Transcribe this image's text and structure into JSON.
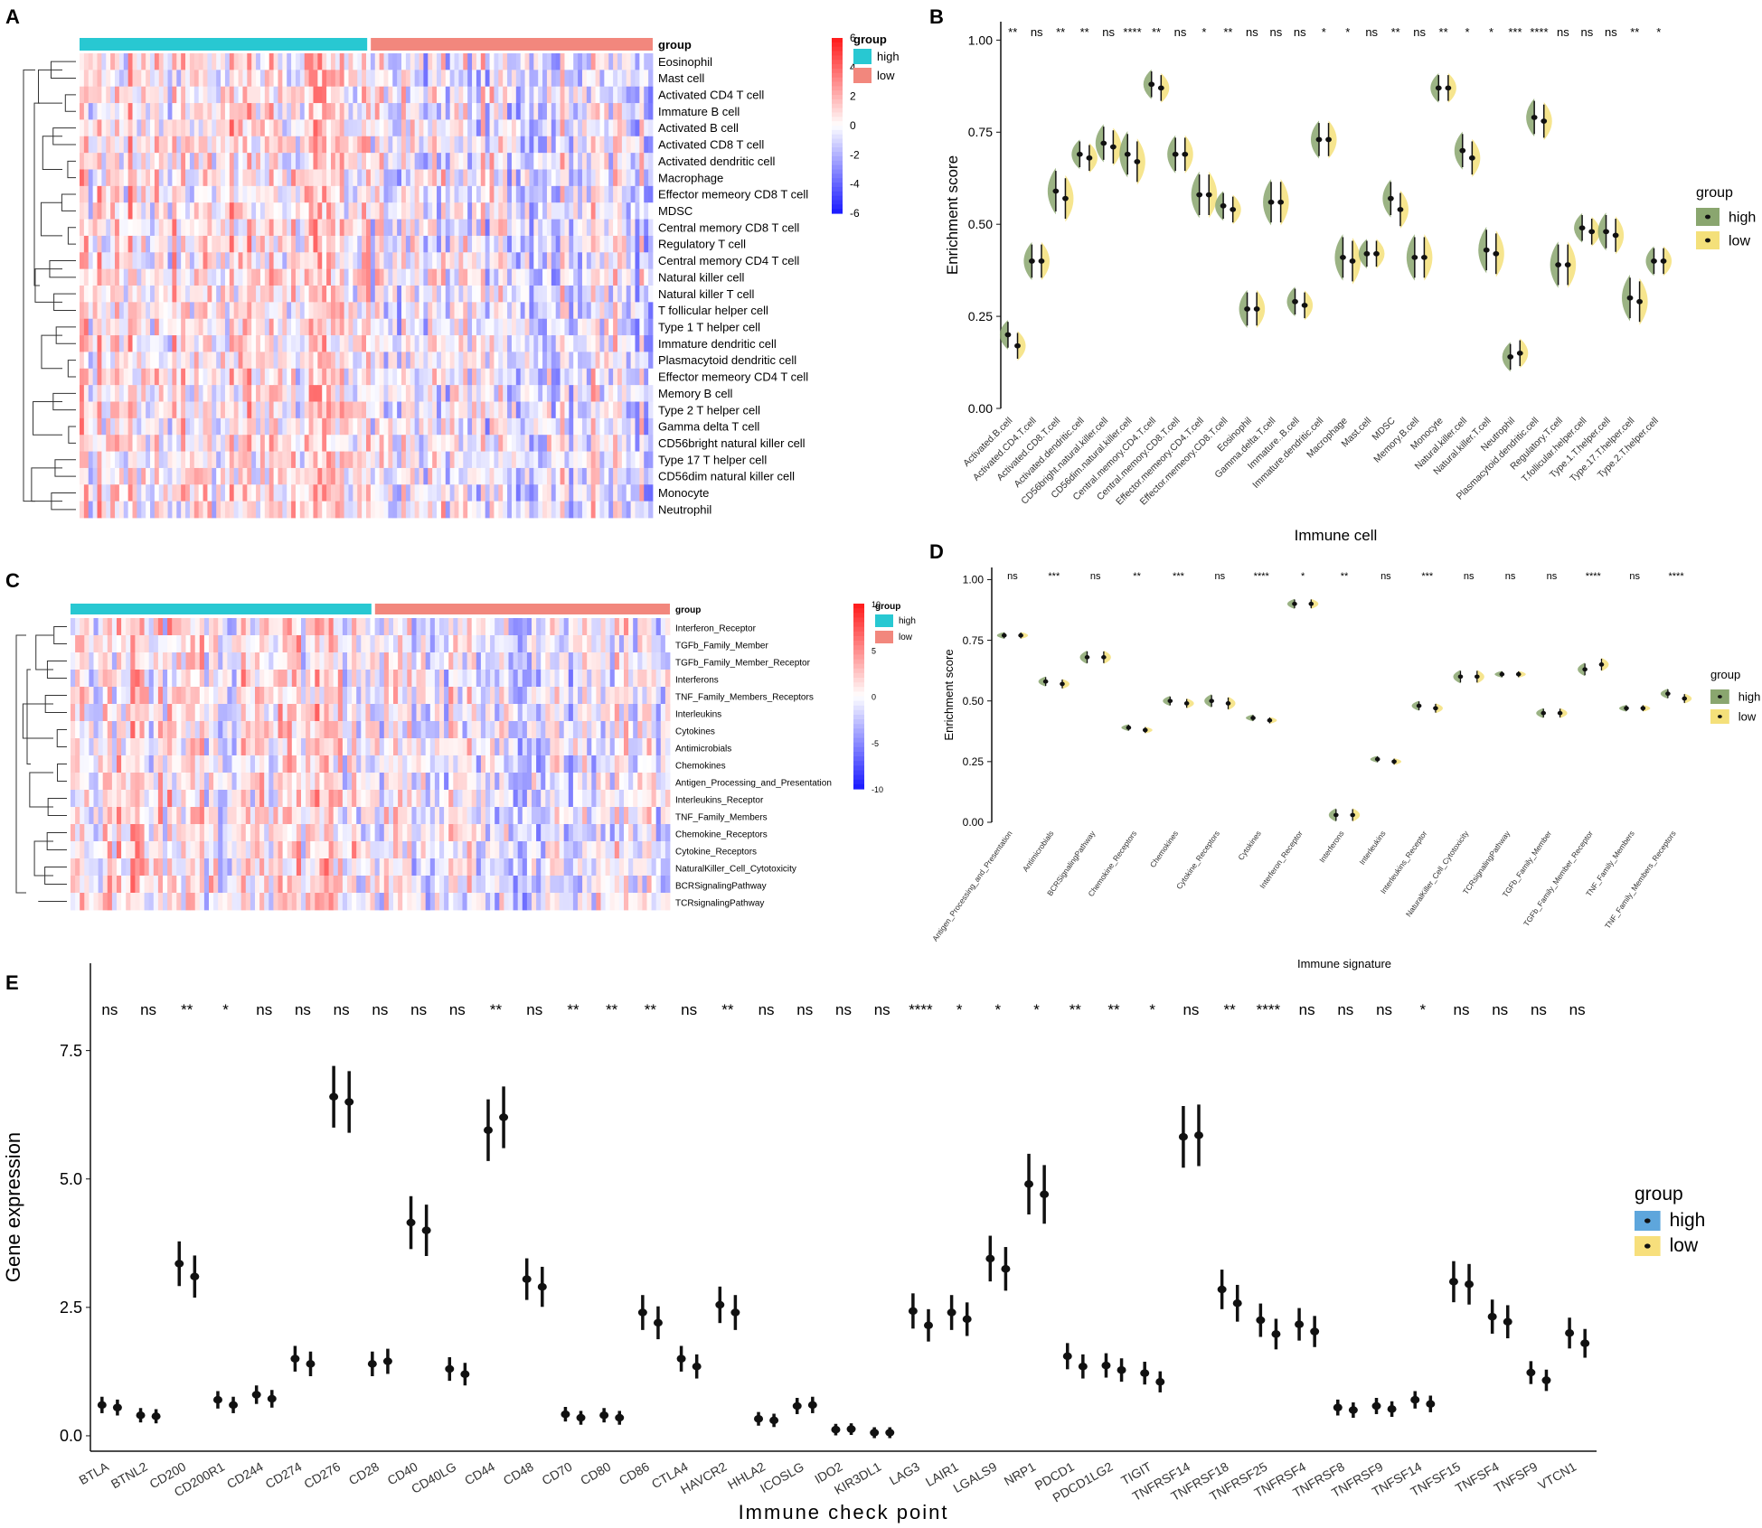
{
  "chart_data": [
    {
      "panel": "A",
      "type": "heatmap",
      "annotation_title": "group",
      "groups": [
        {
          "name": "high",
          "color": "#28c8d2"
        },
        {
          "name": "low",
          "color": "#f2877d"
        }
      ],
      "legend_title": "group",
      "colorbar_ticks": [
        "6",
        "4",
        "2",
        "0",
        "-2",
        "-4",
        "-6"
      ],
      "rows": [
        "Eosinophil",
        "Mast cell",
        "Activated CD4 T cell",
        "Immature  B cell",
        "Activated B cell",
        "Activated CD8 T cell",
        "Activated dendritic cell",
        "Macrophage",
        "Effector memeory CD8 T cell",
        "MDSC",
        "Central memory CD8 T cell",
        "Regulatory T cell",
        "Central memory CD4 T cell",
        "Natural killer cell",
        "Natural killer T cell",
        "T follicular helper cell",
        "Type 1 T helper cell",
        "Immature dendritic cell",
        "Plasmacytoid dendritic cell",
        "Effector memeory CD4 T cell",
        "Memory B cell",
        "Type 2 T helper cell",
        "Gamma delta T cell",
        "CD56bright natural killer cell",
        "Type 17 T helper cell",
        "CD56dim natural killer cell",
        "Monocyte",
        "Neutrophil"
      ]
    },
    {
      "panel": "B",
      "type": "violin",
      "xlabel": "Immune cell",
      "ylabel": "Enrichment score",
      "ylim": [
        0,
        1.05
      ],
      "yticks": [
        "0.00",
        "0.25",
        "0.50",
        "0.75",
        "1.00"
      ],
      "legend_title": "group",
      "legend": [
        "high",
        "low"
      ],
      "categories": [
        "Activated.B.cell",
        "Activated.CD4.T.cell",
        "Activated.CD8.T.cell",
        "Activated.dendritic.cell",
        "CD56bright.natural.killer.cell",
        "CD56dim.natural.killer.cell",
        "Central.memory.CD4.T.cell",
        "Central.memory.CD8.T.cell",
        "Effector.memeory.CD4.T.cell",
        "Effector.memeory.CD8.T.cell",
        "Eosinophil",
        "Gamma.delta.T.cell",
        "Immature..B.cell",
        "Immature.dendritic.cell",
        "Macrophage",
        "Mast.cell",
        "MDSC",
        "Memory.B.cell",
        "Monocyte",
        "Natural.killer.cell",
        "Natural.killer.T.cell",
        "Neutrophil",
        "Plasmacytoid.dendritic.cell",
        "Regulatory.T.cell",
        "T.follicular.helper.cell",
        "Type.1.T.helper.cell",
        "Type.17.T.helper.cell",
        "Type.2.T.helper.cell"
      ],
      "significance": [
        "**",
        "ns",
        "**",
        "**",
        "ns",
        "****",
        "**",
        "ns",
        "*",
        "**",
        "ns",
        "ns",
        "ns",
        "*",
        "*",
        "ns",
        "**",
        "ns",
        "**",
        "*",
        "*",
        "***",
        "****",
        "ns",
        "ns",
        "ns",
        "**",
        "*"
      ],
      "series": [
        {
          "name": "high",
          "values": [
            0.2,
            0.4,
            0.59,
            0.69,
            0.72,
            0.69,
            0.88,
            0.69,
            0.58,
            0.55,
            0.27,
            0.56,
            0.29,
            0.73,
            0.41,
            0.42,
            0.57,
            0.41,
            0.87,
            0.7,
            0.43,
            0.14,
            0.79,
            0.39,
            0.49,
            0.48,
            0.3,
            0.4
          ]
        },
        {
          "name": "low",
          "values": [
            0.17,
            0.4,
            0.57,
            0.68,
            0.71,
            0.67,
            0.87,
            0.69,
            0.58,
            0.54,
            0.27,
            0.56,
            0.28,
            0.73,
            0.4,
            0.42,
            0.54,
            0.41,
            0.87,
            0.68,
            0.42,
            0.15,
            0.78,
            0.39,
            0.48,
            0.47,
            0.29,
            0.4
          ]
        }
      ]
    },
    {
      "panel": "C",
      "type": "heatmap",
      "annotation_title": "group",
      "groups": [
        {
          "name": "high",
          "color": "#28c8d2"
        },
        {
          "name": "low",
          "color": "#f2877d"
        }
      ],
      "legend_title": "group",
      "colorbar_ticks": [
        "10",
        "5",
        "0",
        "-5",
        "-10"
      ],
      "rows": [
        "Interferon_Receptor",
        "TGFb_Family_Member",
        "TGFb_Family_Member_Receptor",
        "Interferons",
        "TNF_Family_Members_Receptors",
        "Interleukins",
        "Cytokines",
        "Antimicrobials",
        "Chemokines",
        "Antigen_Processing_and_Presentation",
        "Interleukins_Receptor",
        "TNF_Family_Members",
        "Chemokine_Receptors",
        "Cytokine_Receptors",
        "NaturalKiller_Cell_Cytotoxicity",
        "BCRSignalingPathway",
        "TCRsignalingPathway"
      ]
    },
    {
      "panel": "D",
      "type": "violin",
      "xlabel": "Immune signature",
      "ylabel": "Enrichment score",
      "ylim": [
        0,
        1.05
      ],
      "yticks": [
        "0.00",
        "0.25",
        "0.50",
        "0.75",
        "1.00"
      ],
      "legend_title": "group",
      "legend": [
        "high",
        "low"
      ],
      "categories": [
        "Antigen_Processing_and_Presentation",
        "Antimicrobials",
        "BCRSignalingPathway",
        "Chemokine_Receptors",
        "Chemokines",
        "Cytokine_Receptors",
        "Cytokines",
        "Interferon_Receptor",
        "Interferons",
        "Interleukins",
        "Interleukins_Receptor",
        "NaturalKiller_Cell_Cytotoxicity",
        "TCRsignalingPathway",
        "TGFb_Family_Member",
        "TGFb_Family_Member_Receptor",
        "TNF_Family_Members",
        "TNF_Family_Members_Receptors"
      ],
      "significance": [
        "ns",
        "***",
        "ns",
        "**",
        "***",
        "ns",
        "****",
        "*",
        "**",
        "ns",
        "***",
        "ns",
        "ns",
        "ns",
        "****",
        "ns",
        "****"
      ],
      "series": [
        {
          "name": "high",
          "values": [
            0.77,
            0.58,
            0.68,
            0.39,
            0.5,
            0.5,
            0.43,
            0.9,
            0.03,
            0.26,
            0.48,
            0.6,
            0.61,
            0.45,
            0.63,
            0.47,
            0.53
          ]
        },
        {
          "name": "low",
          "values": [
            0.77,
            0.57,
            0.68,
            0.38,
            0.49,
            0.49,
            0.42,
            0.9,
            0.03,
            0.25,
            0.47,
            0.6,
            0.61,
            0.45,
            0.65,
            0.47,
            0.51
          ]
        }
      ]
    },
    {
      "panel": "E",
      "type": "violin",
      "xlabel": "Immune check point",
      "ylabel": "Gene expression",
      "ylim": [
        -0.3,
        9.2
      ],
      "yticks": [
        "0.0",
        "2.5",
        "5.0",
        "7.5"
      ],
      "legend_title": "group",
      "legend": [
        "high",
        "low"
      ],
      "categories": [
        "BTLA",
        "BTNL2",
        "CD200",
        "CD200R1",
        "CD244",
        "CD274",
        "CD276",
        "CD28",
        "CD40",
        "CD40LG",
        "CD44",
        "CD48",
        "CD70",
        "CD80",
        "CD86",
        "CTLA4",
        "HAVCR2",
        "HHLA2",
        "ICOSLG",
        "IDO2",
        "KIR3DL1",
        "LAG3",
        "LAIR1",
        "LGALS9",
        "NRP1",
        "PDCD1",
        "PDCD1LG2",
        "TIGIT",
        "TNFRSF14",
        "TNFRSF18",
        "TNFRSF25",
        "TNFRSF4",
        "TNFRSF8",
        "TNFRSF9",
        "TNFSF14",
        "TNFSF15",
        "TNFSF4",
        "TNFSF9",
        "VTCN1"
      ],
      "significance": [
        "ns",
        "ns",
        "**",
        "*",
        "ns",
        "ns",
        "ns",
        "ns",
        "ns",
        "ns",
        "**",
        "ns",
        "**",
        "**",
        "**",
        "ns",
        "**",
        "ns",
        "ns",
        "ns",
        "ns",
        "****",
        "*",
        "*",
        "*",
        "**",
        "**",
        "*",
        "ns",
        "**",
        "****",
        "ns",
        "ns",
        "ns",
        "*",
        "ns",
        "ns",
        "ns",
        "ns"
      ],
      "series": [
        {
          "name": "high",
          "values": [
            0.6,
            0.4,
            3.35,
            0.7,
            0.8,
            1.5,
            6.6,
            1.4,
            4.15,
            1.3,
            5.95,
            3.05,
            0.42,
            0.4,
            2.4,
            1.5,
            2.55,
            0.33,
            0.58,
            0.12,
            0.06,
            2.43,
            2.4,
            3.45,
            4.9,
            1.55,
            1.37,
            1.22,
            5.82,
            2.85,
            2.25,
            2.17,
            0.55,
            0.58,
            0.7,
            3.0,
            2.32,
            1.23,
            2.0
          ]
        },
        {
          "name": "low",
          "values": [
            0.55,
            0.38,
            3.1,
            0.6,
            0.72,
            1.4,
            6.5,
            1.45,
            4.0,
            1.2,
            6.2,
            2.9,
            0.35,
            0.35,
            2.2,
            1.35,
            2.4,
            0.3,
            0.6,
            0.13,
            0.06,
            2.15,
            2.27,
            3.25,
            4.7,
            1.35,
            1.28,
            1.05,
            5.85,
            2.58,
            1.98,
            2.03,
            0.5,
            0.52,
            0.62,
            2.95,
            2.22,
            1.08,
            1.8
          ]
        }
      ]
    }
  ],
  "labels": {
    "A": "A",
    "B": "B",
    "C": "C",
    "D": "D",
    "E": "E"
  }
}
